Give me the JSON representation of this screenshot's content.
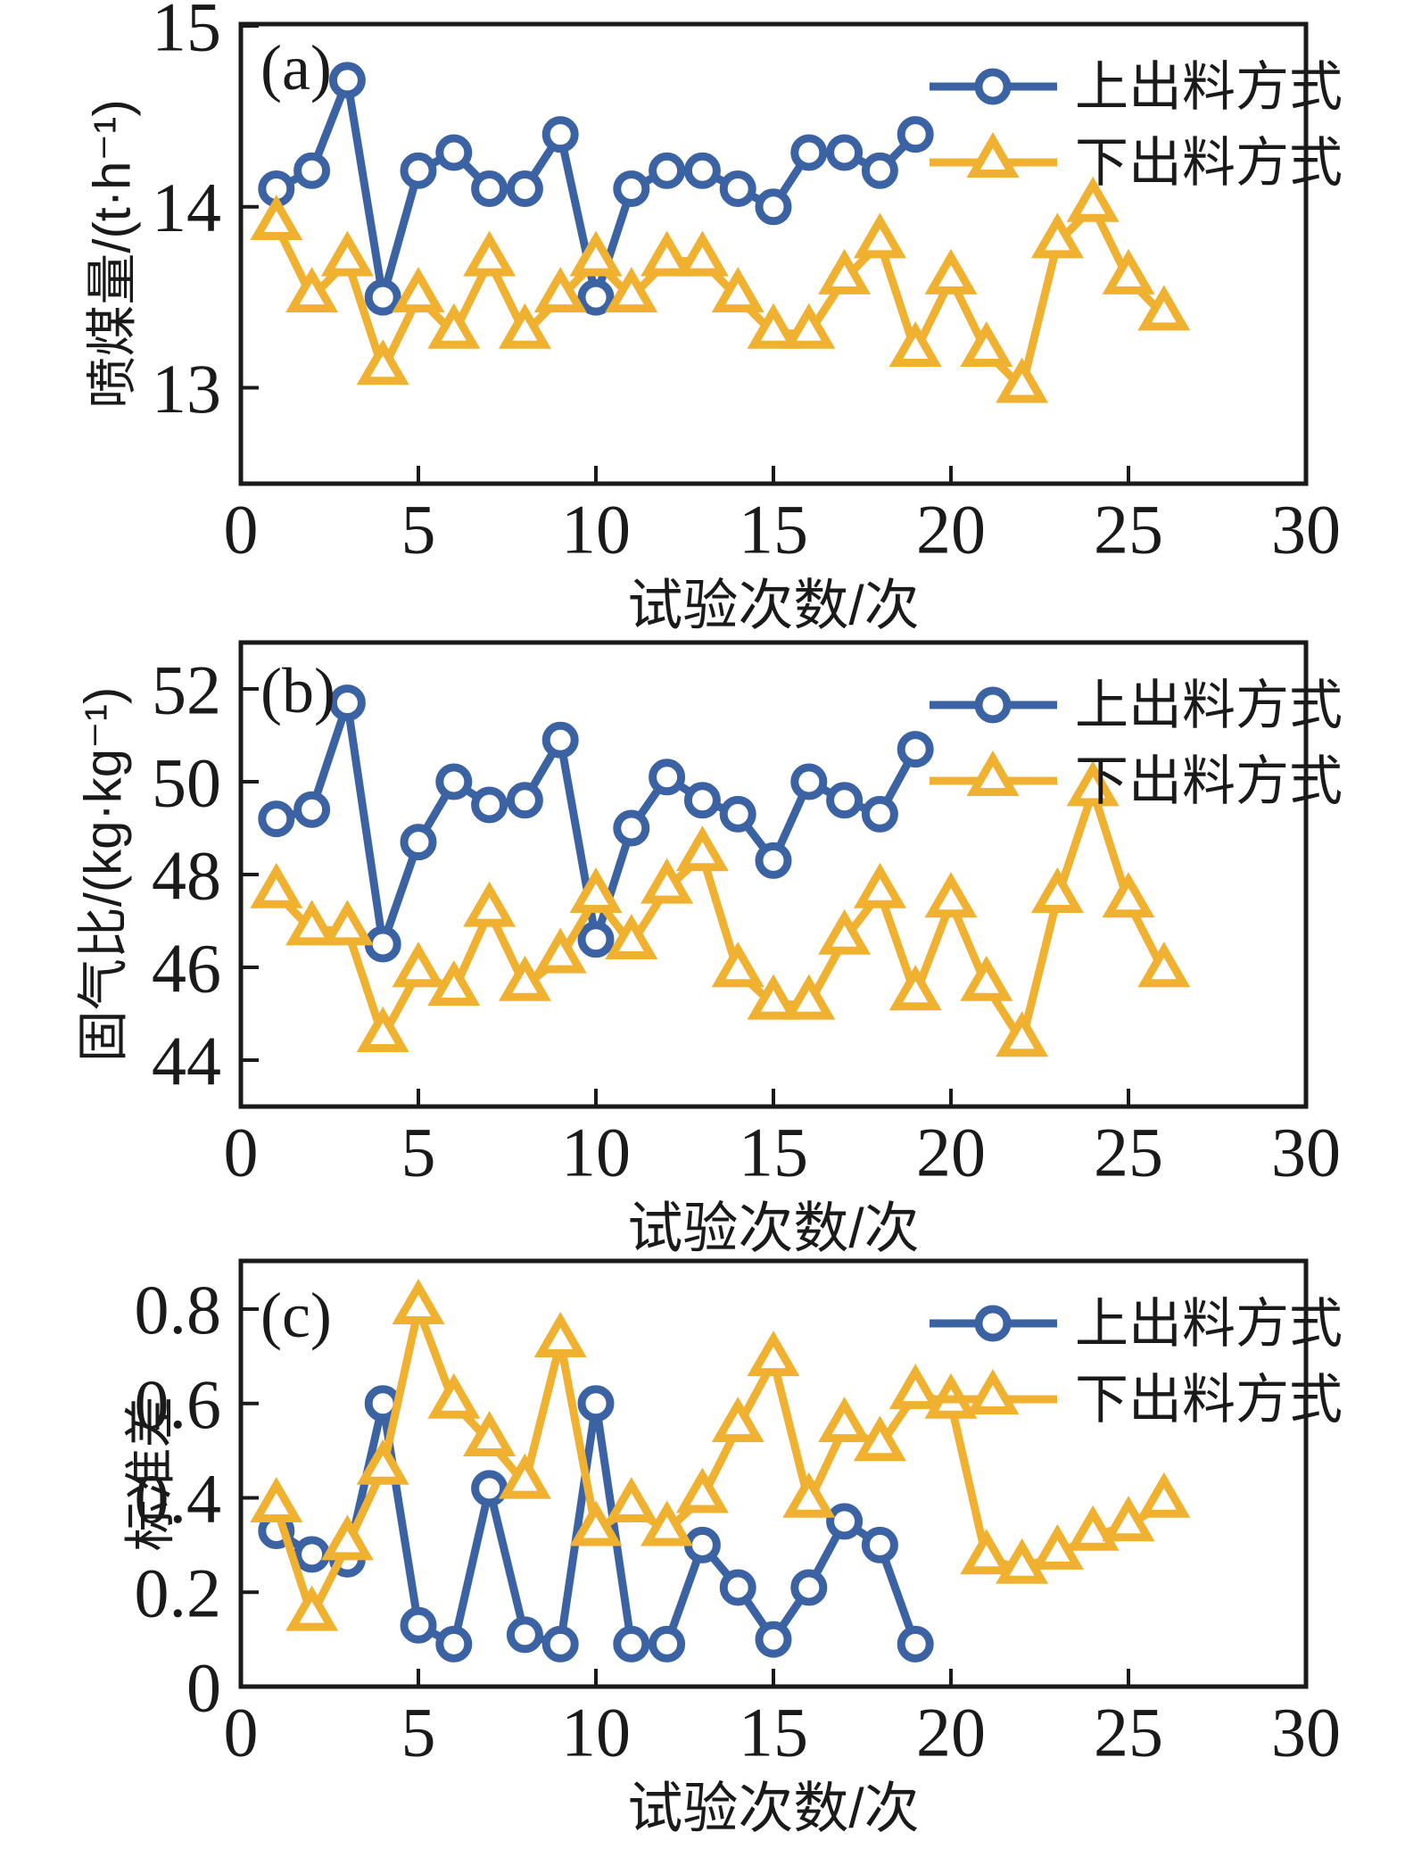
{
  "figure": {
    "background": "#ffffff",
    "frame_color": "#1a1a1a",
    "accent_blue": "#3b63a3",
    "accent_yellow": "#f0b030",
    "xlabel": "试验次数/次",
    "legend": [
      "上出料方式",
      "下出料方式"
    ]
  },
  "chart_data": [
    {
      "type": "line",
      "panel_label": "(a)",
      "title": "",
      "xlabel": "试验次数/次",
      "ylabel": "喷煤量/(t·h⁻¹)",
      "xlim": [
        0,
        30
      ],
      "ylim": [
        12.47,
        15.01
      ],
      "grid": false,
      "legend_position": "top-right",
      "xticks": [
        0,
        5,
        10,
        15,
        20,
        25,
        30
      ],
      "xtick_labels": [
        "0",
        "5",
        "10",
        "15",
        "20",
        "25",
        "30"
      ],
      "yticks": [
        13,
        14,
        15
      ],
      "ytick_labels": [
        "13",
        "14",
        "15"
      ],
      "x_start": 1,
      "series": [
        {
          "name": "上出料方式",
          "marker": "circle",
          "color": "#3b63a3",
          "values": [
            14.1,
            14.2,
            14.7,
            13.5,
            14.2,
            14.3,
            14.1,
            14.1,
            14.4,
            13.5,
            14.1,
            14.2,
            14.2,
            14.1,
            14.0,
            14.3,
            14.3,
            14.2,
            14.4
          ]
        },
        {
          "name": "下出料方式",
          "marker": "triangle",
          "color": "#f0b030",
          "values": [
            13.9,
            13.5,
            13.7,
            13.1,
            13.5,
            13.3,
            13.7,
            13.3,
            13.5,
            13.7,
            13.5,
            13.7,
            13.7,
            13.5,
            13.3,
            13.3,
            13.6,
            13.8,
            13.2,
            13.6,
            13.2,
            13.0,
            13.8,
            14.0,
            13.6,
            13.4
          ]
        }
      ]
    },
    {
      "type": "line",
      "panel_label": "(b)",
      "title": "",
      "xlabel": "试验次数/次",
      "ylabel": "固气比/(kg·kg⁻¹)",
      "xlim": [
        0,
        30
      ],
      "ylim": [
        43,
        53
      ],
      "grid": false,
      "legend_position": "top-right",
      "xticks": [
        0,
        5,
        10,
        15,
        20,
        25,
        30
      ],
      "xtick_labels": [
        "0",
        "5",
        "10",
        "15",
        "20",
        "25",
        "30"
      ],
      "yticks": [
        44,
        46,
        48,
        50,
        52
      ],
      "ytick_labels": [
        "44",
        "46",
        "48",
        "50",
        "52"
      ],
      "x_start": 1,
      "series": [
        {
          "name": "上出料方式",
          "marker": "circle",
          "color": "#3b63a3",
          "values": [
            49.2,
            49.4,
            51.7,
            46.5,
            48.7,
            50.0,
            49.5,
            49.6,
            50.9,
            46.6,
            49.0,
            50.1,
            49.6,
            49.3,
            48.3,
            50.0,
            49.6,
            49.3,
            50.7
          ]
        },
        {
          "name": "下出料方式",
          "marker": "triangle",
          "color": "#f0b030",
          "values": [
            47.6,
            46.8,
            46.8,
            44.5,
            45.9,
            45.5,
            47.2,
            45.6,
            46.2,
            47.5,
            46.5,
            47.7,
            48.4,
            45.9,
            45.2,
            45.2,
            46.6,
            47.6,
            45.4,
            47.4,
            45.6,
            44.4,
            47.5,
            49.8,
            47.4,
            45.9
          ]
        }
      ]
    },
    {
      "type": "line",
      "panel_label": "(c)",
      "title": "",
      "xlabel": "试验次数/次",
      "ylabel": "标准差",
      "xlim": [
        0,
        30
      ],
      "ylim": [
        0,
        0.902
      ],
      "grid": false,
      "legend_position": "top-right",
      "xticks": [
        0,
        5,
        10,
        15,
        20,
        25,
        30
      ],
      "xtick_labels": [
        "0",
        "5",
        "10",
        "15",
        "20",
        "25",
        "30"
      ],
      "yticks": [
        0,
        0.2,
        0.4,
        0.6,
        0.8
      ],
      "ytick_labels": [
        "0",
        "0.2",
        "0.4",
        "0.6",
        "0.8"
      ],
      "x_start": 1,
      "series": [
        {
          "name": "上出料方式",
          "marker": "circle",
          "color": "#3b63a3",
          "values": [
            0.33,
            0.28,
            0.27,
            0.6,
            0.13,
            0.09,
            0.42,
            0.11,
            0.09,
            0.6,
            0.09,
            0.09,
            0.3,
            0.21,
            0.1,
            0.21,
            0.35,
            0.3,
            0.09
          ]
        },
        {
          "name": "下出料方式",
          "marker": "triangle",
          "color": "#f0b030",
          "values": [
            0.38,
            0.15,
            0.3,
            0.46,
            0.8,
            0.6,
            0.52,
            0.43,
            0.73,
            0.33,
            0.38,
            0.33,
            0.4,
            0.55,
            0.69,
            0.39,
            0.55,
            0.51,
            0.62,
            0.6,
            0.27,
            0.25,
            0.28,
            0.32,
            0.34,
            0.39
          ]
        }
      ]
    }
  ]
}
